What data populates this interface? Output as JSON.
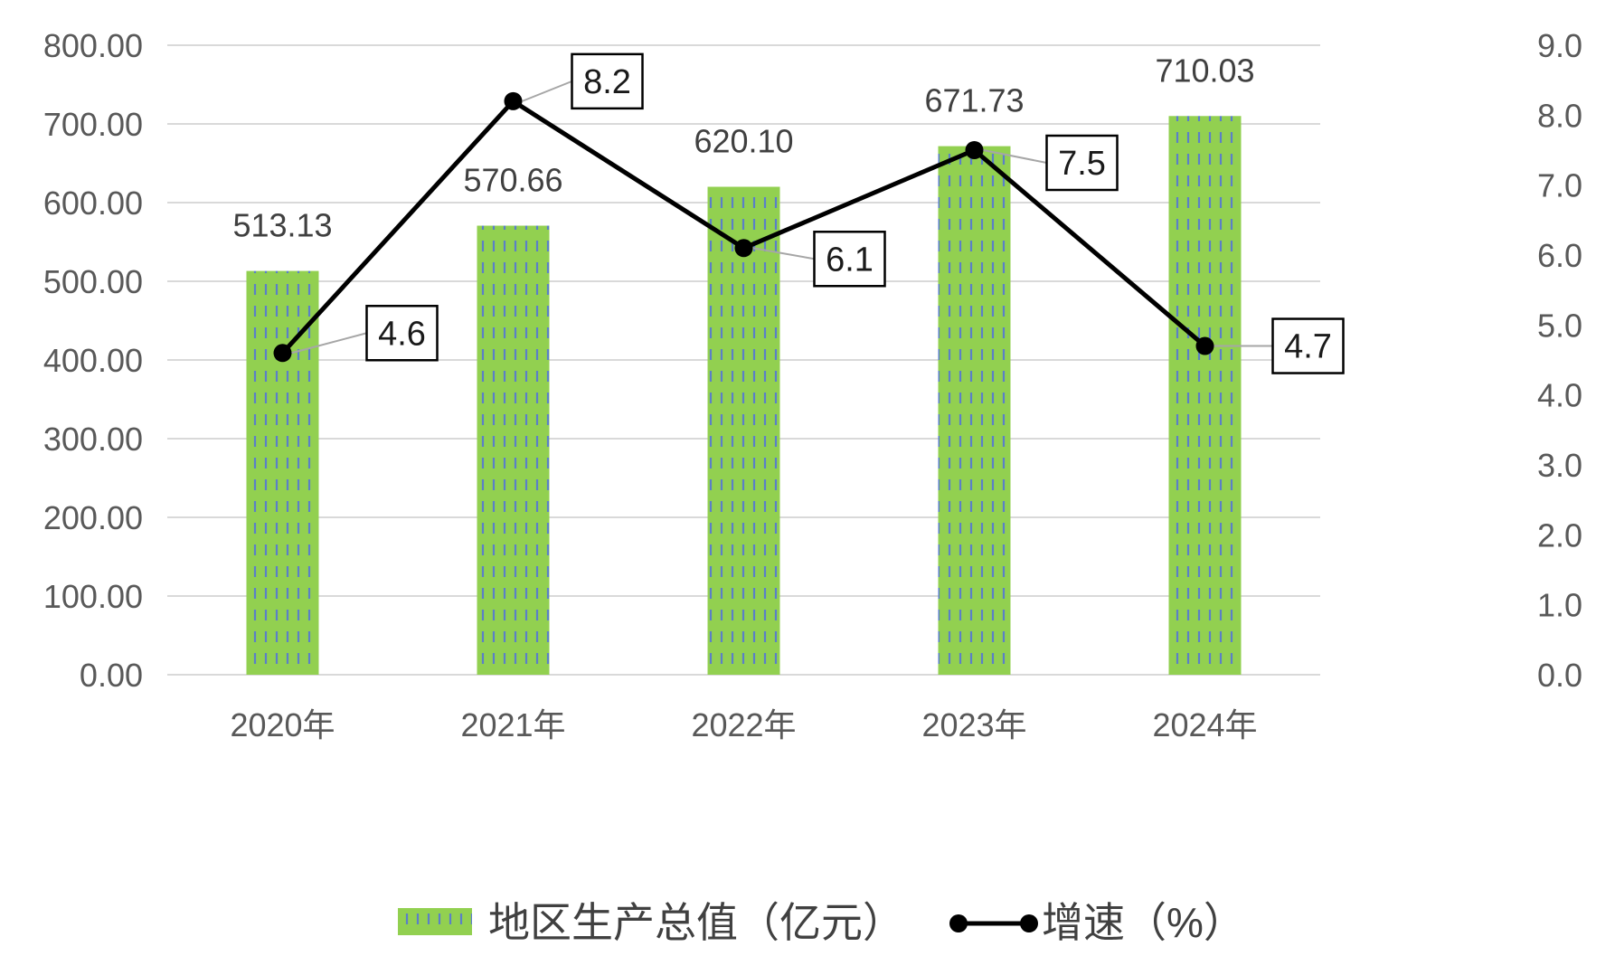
{
  "chart_data": {
    "type": "bar",
    "categories": [
      "2020年",
      "2021年",
      "2022年",
      "2023年",
      "2024年"
    ],
    "series": [
      {
        "name": "地区生产总值（亿元）",
        "type": "bar",
        "axis": "left",
        "values": [
          513.13,
          570.66,
          620.1,
          671.73,
          710.03
        ],
        "value_labels": [
          "513.13",
          "570.66",
          "620.10",
          "671.73",
          "710.03"
        ],
        "color": "#92D050",
        "pattern_color": "#4472C4"
      },
      {
        "name": "增速（%）",
        "type": "line",
        "axis": "right",
        "values": [
          4.6,
          8.2,
          6.1,
          7.5,
          4.7
        ],
        "value_labels": [
          "4.6",
          "8.2",
          "6.1",
          "7.5",
          "4.7"
        ],
        "color": "#000000"
      }
    ],
    "y_left": {
      "lim": [
        0,
        800
      ],
      "ticks": [
        "0.00",
        "100.00",
        "200.00",
        "300.00",
        "400.00",
        "500.00",
        "600.00",
        "700.00",
        "800.00"
      ]
    },
    "y_right": {
      "lim": [
        0,
        9
      ],
      "ticks": [
        "0.0",
        "1.0",
        "2.0",
        "3.0",
        "4.0",
        "5.0",
        "6.0",
        "7.0",
        "8.0",
        "9.0"
      ]
    },
    "grid": true,
    "legend_position": "bottom-center",
    "xlabel": "",
    "title": ""
  }
}
